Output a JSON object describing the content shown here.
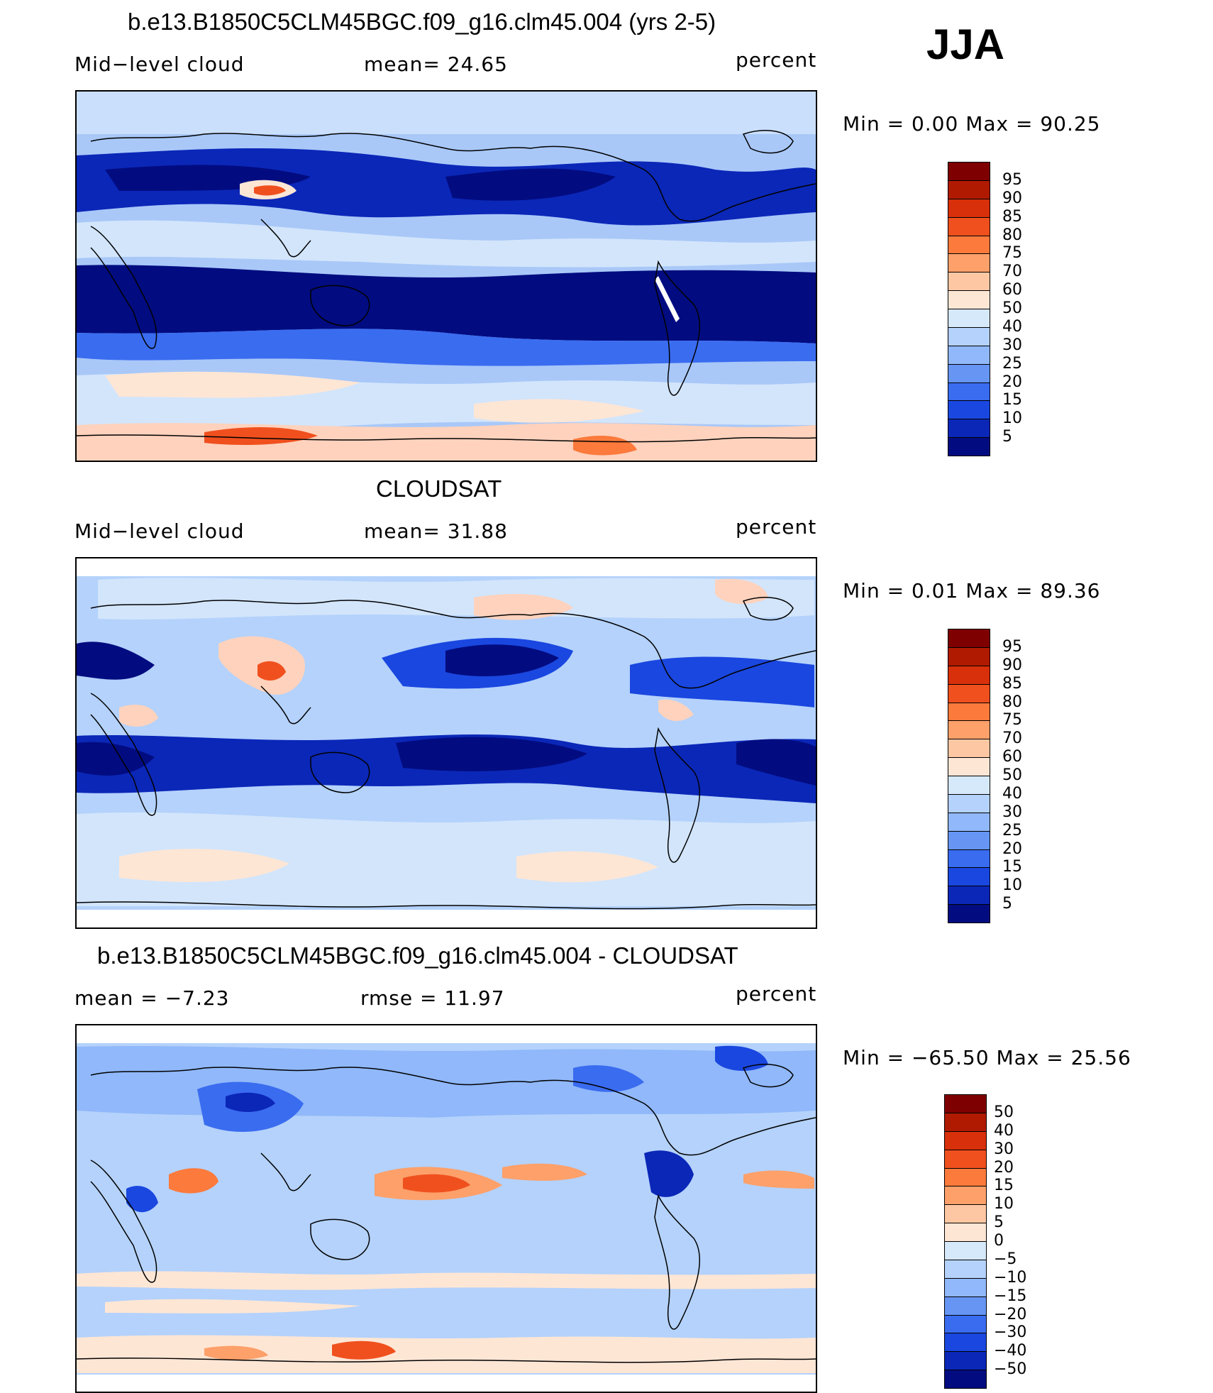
{
  "season": "JJA",
  "panels": [
    {
      "id": "model",
      "title": "b.e13.B1850C5CLM45BGC.f09_g16.clm45.004 (yrs 2-5)",
      "left_label": "Mid−level cloud",
      "mid_label": "mean=   24.65",
      "units": "percent",
      "minmax": "Min  =     0.00  Max  =    90.25",
      "legend_labels": [
        "95",
        "90",
        "85",
        "80",
        "75",
        "70",
        "60",
        "50",
        "40",
        "30",
        "25",
        "20",
        "15",
        "10",
        "5"
      ],
      "legend_colors": [
        "#7f0000",
        "#b01a00",
        "#d8300a",
        "#f0501e",
        "#fb7a3c",
        "#fda06a",
        "#fec7a3",
        "#fee6d5",
        "#d6e9fb",
        "#b4d2fb",
        "#90b8fa",
        "#6695f4",
        "#3a6cf0",
        "#1a47e0",
        "#0b27b8",
        "#020c80"
      ]
    },
    {
      "id": "obs",
      "title": "CLOUDSAT",
      "left_label": "Mid−level cloud",
      "mid_label": "mean=   31.88",
      "units": "percent",
      "minmax": "Min  =     0.01  Max  =    89.36",
      "legend_labels": [
        "95",
        "90",
        "85",
        "80",
        "75",
        "70",
        "60",
        "50",
        "40",
        "30",
        "25",
        "20",
        "15",
        "10",
        "5"
      ],
      "legend_colors": [
        "#7f0000",
        "#b01a00",
        "#d8300a",
        "#f0501e",
        "#fb7a3c",
        "#fda06a",
        "#fec7a3",
        "#fee6d5",
        "#d6e9fb",
        "#b4d2fb",
        "#90b8fa",
        "#6695f4",
        "#3a6cf0",
        "#1a47e0",
        "#0b27b8",
        "#020c80"
      ]
    },
    {
      "id": "diff",
      "title": "b.e13.B1850C5CLM45BGC.f09_g16.clm45.004 - CLOUDSAT",
      "left_label": "mean  =    −7.23",
      "mid_label": "rmse  =    11.97",
      "units": "percent",
      "minmax": "Min  = −65.50  Max  =    25.56",
      "legend_labels": [
        "50",
        "40",
        "30",
        "20",
        "15",
        "10",
        "5",
        "0",
        "−5",
        "−10",
        "−15",
        "−20",
        "−30",
        "−40",
        "−50"
      ],
      "legend_colors": [
        "#7f0000",
        "#b01a00",
        "#d8300a",
        "#f0501e",
        "#fb7a3c",
        "#fda06a",
        "#fec7a3",
        "#fee6d5",
        "#d6e9fb",
        "#b4d2fb",
        "#90b8fa",
        "#6695f4",
        "#3a6cf0",
        "#1a47e0",
        "#0b27b8",
        "#020c80"
      ]
    }
  ],
  "colors": {
    "ocean_base": "#a9c8f8",
    "low": "#041092",
    "mid": "#2a55e0",
    "light": "#d2e5fb",
    "warm": "#fed2bd",
    "hot": "#f0501e"
  }
}
